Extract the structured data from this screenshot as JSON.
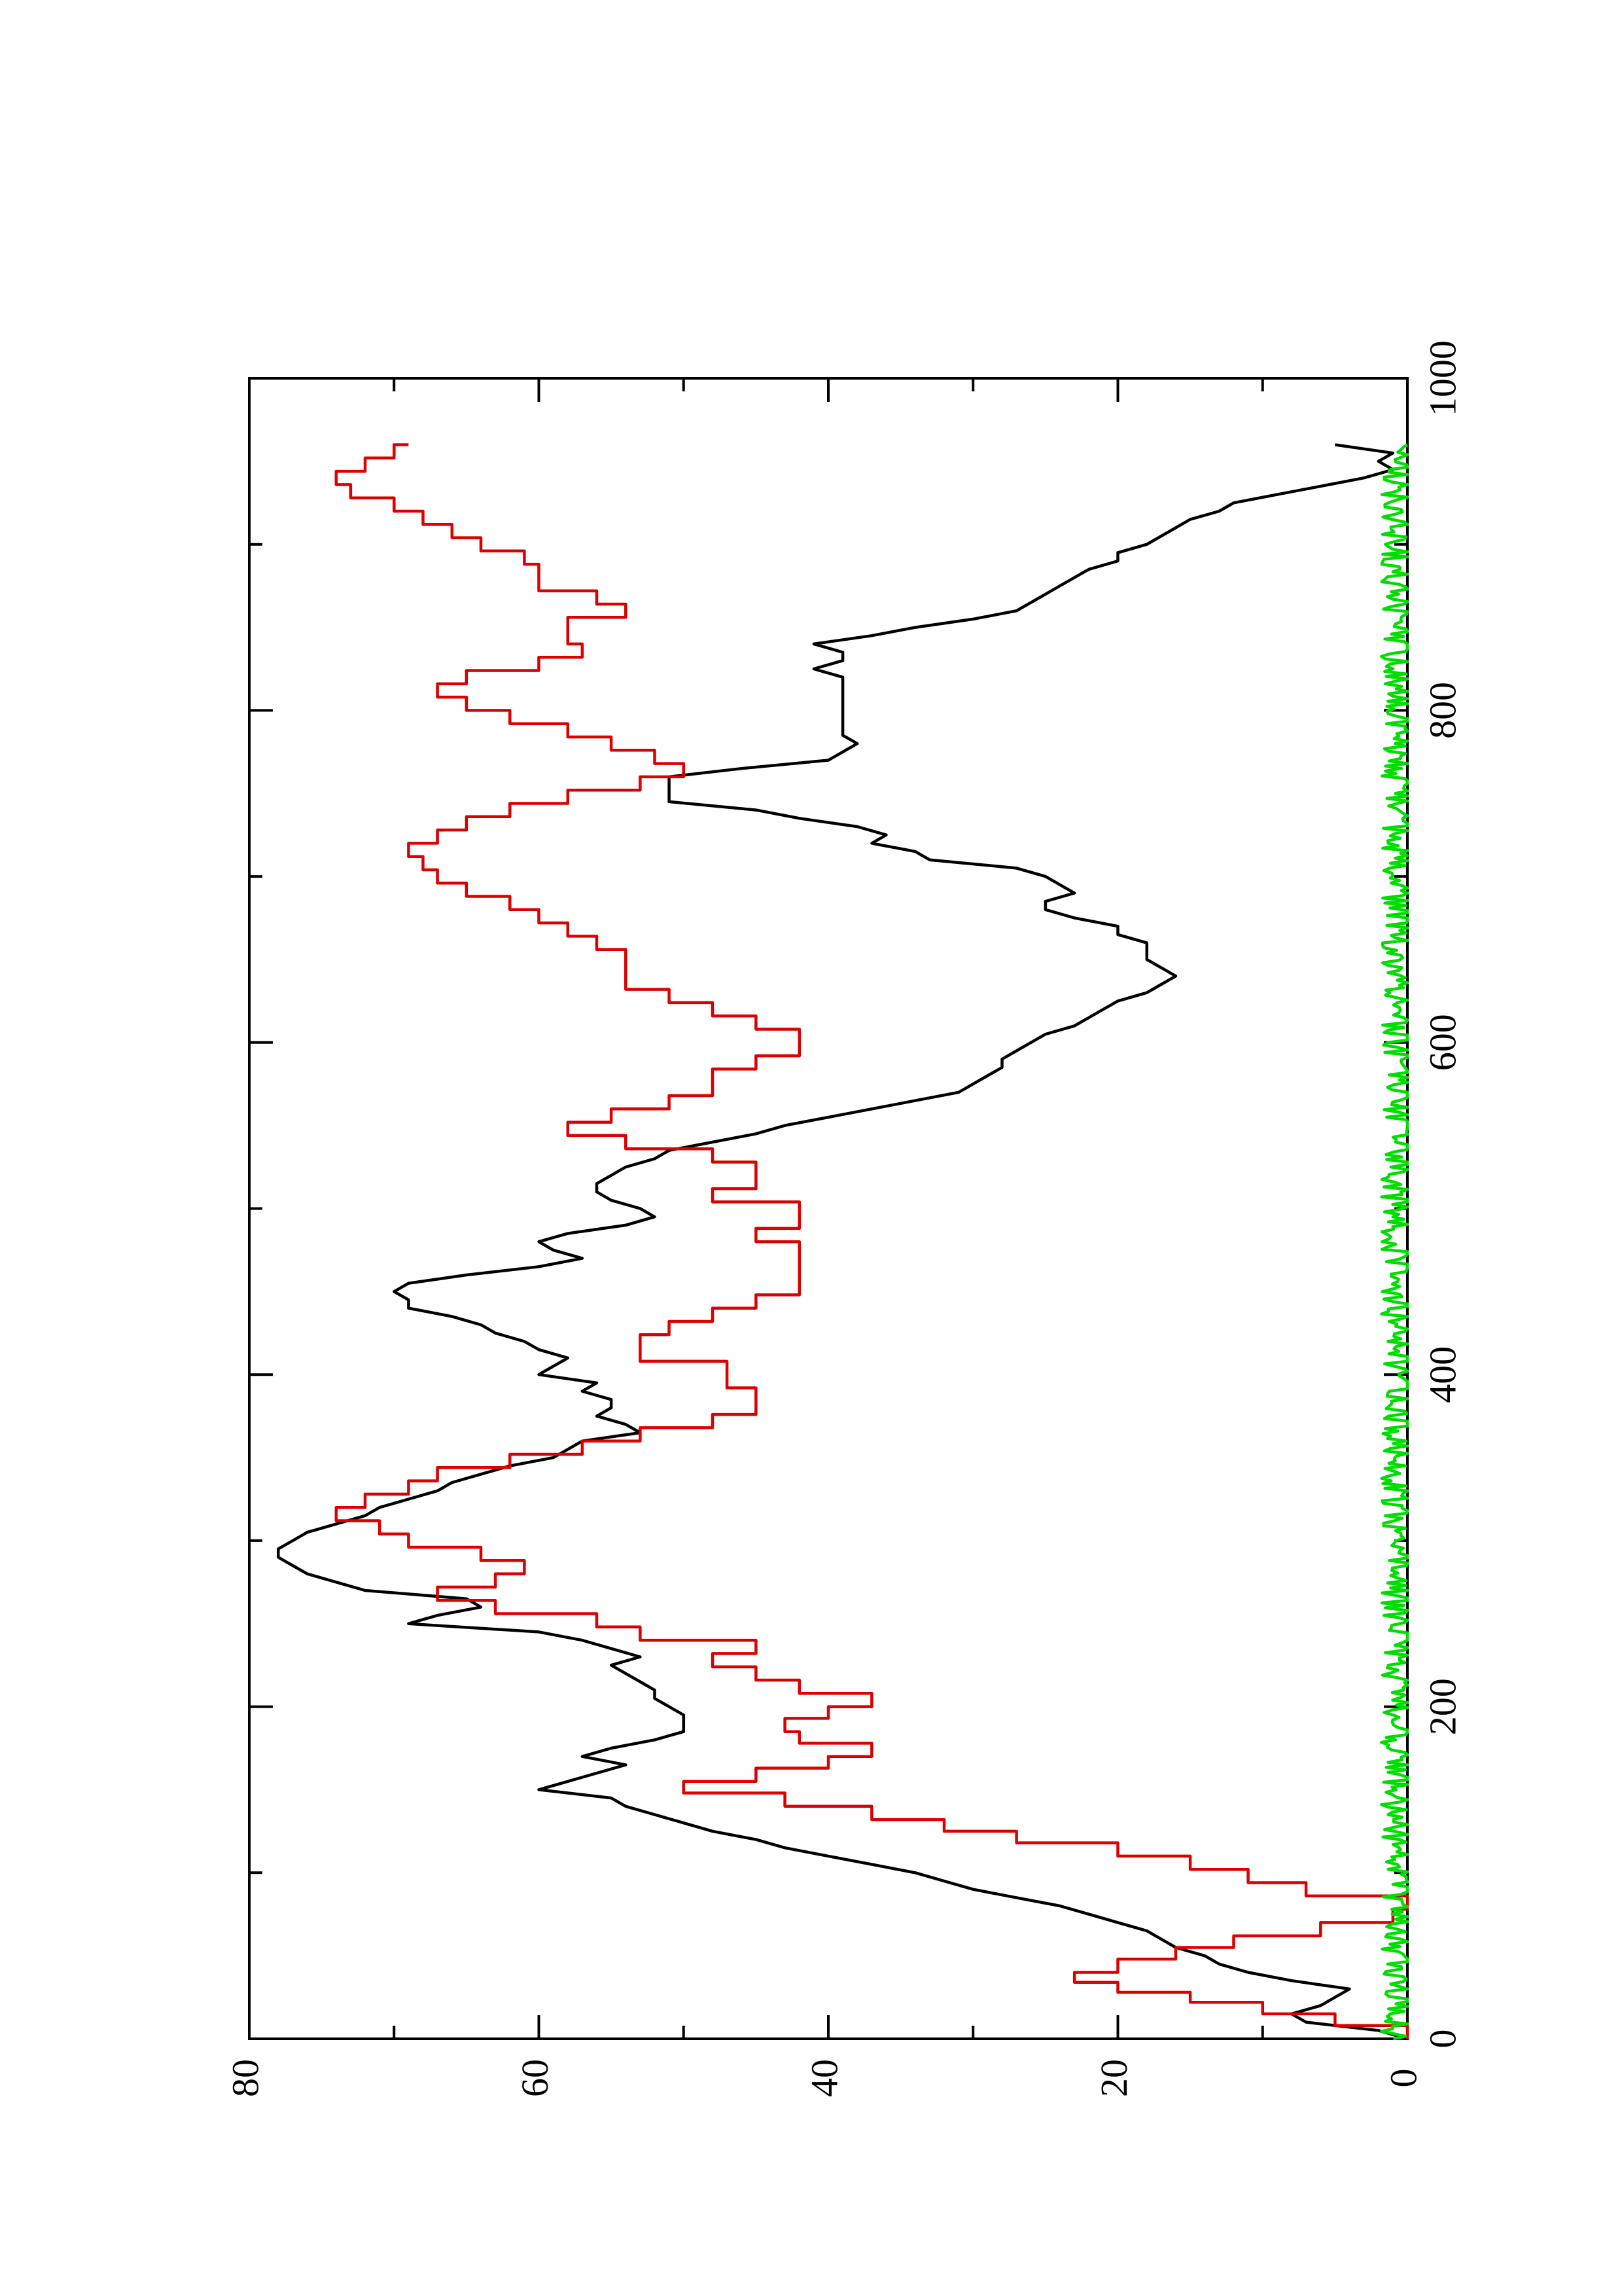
{
  "chart_data": {
    "type": "line",
    "orientation": "rotated-90-ccw",
    "title": "",
    "xlabel": "",
    "ylabel": "",
    "xlim": [
      0,
      1000
    ],
    "ylim": [
      0,
      80
    ],
    "grid": false,
    "legend": "none",
    "x_ticks": [
      0,
      200,
      400,
      600,
      800,
      1000
    ],
    "y_ticks": [
      0,
      20,
      40,
      60,
      80
    ],
    "series": [
      {
        "color": "#000000",
        "style": "line",
        "x": [
          0,
          5,
          10,
          15,
          20,
          25,
          30,
          35,
          40,
          45,
          50,
          55,
          60,
          65,
          70,
          75,
          80,
          85,
          90,
          95,
          100,
          105,
          110,
          115,
          120,
          125,
          130,
          135,
          140,
          145,
          150,
          155,
          160,
          165,
          170,
          175,
          180,
          185,
          190,
          195,
          200,
          205,
          210,
          215,
          220,
          225,
          230,
          235,
          240,
          245,
          250,
          255,
          260,
          265,
          270,
          275,
          280,
          285,
          290,
          295,
          300,
          305,
          310,
          315,
          320,
          325,
          330,
          335,
          340,
          345,
          350,
          355,
          360,
          365,
          370,
          375,
          380,
          385,
          390,
          395,
          400,
          405,
          410,
          415,
          420,
          425,
          430,
          435,
          440,
          445,
          450,
          455,
          460,
          465,
          470,
          475,
          480,
          485,
          490,
          495,
          500,
          505,
          510,
          515,
          520,
          525,
          530,
          535,
          540,
          545,
          550,
          555,
          560,
          565,
          570,
          575,
          580,
          585,
          590,
          595,
          600,
          605,
          610,
          615,
          620,
          625,
          630,
          635,
          640,
          645,
          650,
          655,
          660,
          665,
          670,
          675,
          680,
          685,
          690,
          695,
          700,
          705,
          710,
          715,
          720,
          725,
          730,
          735,
          740,
          745,
          750,
          755,
          760,
          765,
          770,
          775,
          780,
          785,
          790,
          795,
          800,
          805,
          810,
          815,
          820,
          825,
          830,
          835,
          840,
          845,
          850,
          855,
          860,
          865,
          870,
          875,
          880,
          885,
          890,
          895,
          900,
          905,
          910,
          915,
          920,
          925,
          930,
          935,
          940,
          945,
          950,
          955,
          960
        ],
        "y": [
          0,
          2,
          7,
          8,
          6,
          5,
          4,
          8,
          11,
          13,
          14,
          16,
          17,
          18,
          20,
          22,
          24,
          27,
          30,
          32,
          34,
          37,
          40,
          43,
          45,
          48,
          50,
          52,
          54,
          55,
          60,
          58,
          56,
          54,
          57,
          55,
          52,
          50,
          50,
          50,
          51,
          52,
          52,
          53,
          54,
          55,
          53,
          55,
          57,
          60,
          69,
          67,
          64,
          65,
          72,
          74,
          76,
          77,
          78,
          78,
          77,
          76,
          74,
          72,
          71,
          69,
          67,
          66,
          64,
          62,
          59,
          58,
          57,
          53,
          54,
          56,
          55,
          55,
          57,
          56,
          60,
          59,
          58,
          60,
          61,
          63,
          64,
          66,
          69,
          69,
          70,
          69,
          65,
          60,
          57,
          59,
          60,
          58,
          54,
          52,
          53,
          55,
          56,
          56,
          55,
          54,
          52,
          51,
          48,
          45,
          43,
          40,
          37,
          34,
          31,
          30,
          29,
          28,
          28,
          27,
          26,
          25,
          23,
          22,
          21,
          20,
          18,
          17,
          16,
          17,
          18,
          18,
          18,
          20,
          20,
          23,
          25,
          25,
          23,
          24,
          25,
          27,
          33,
          34,
          37,
          36,
          38,
          42,
          45,
          51,
          51,
          51,
          51,
          46,
          40,
          39,
          38,
          39,
          39,
          39,
          39,
          39,
          39,
          39,
          39,
          41,
          39,
          39,
          41,
          37,
          34,
          30,
          27,
          26,
          25,
          24,
          23,
          22,
          20,
          20,
          18,
          17,
          16,
          15,
          13,
          12,
          9,
          6,
          3,
          1,
          2,
          1,
          5
        ]
      },
      {
        "color": "#dd0000",
        "style": "step",
        "x": [
          0,
          8,
          15,
          22,
          28,
          34,
          40,
          48,
          55,
          62,
          70,
          78,
          86,
          94,
          102,
          110,
          118,
          125,
          132,
          140,
          148,
          155,
          163,
          170,
          178,
          185,
          193,
          200,
          208,
          216,
          224,
          232,
          240,
          248,
          256,
          264,
          272,
          280,
          288,
          296,
          304,
          312,
          320,
          328,
          336,
          344,
          352,
          360,
          368,
          376,
          384,
          392,
          400,
          408,
          416,
          424,
          432,
          440,
          448,
          456,
          464,
          472,
          480,
          488,
          496,
          504,
          512,
          520,
          528,
          536,
          544,
          552,
          560,
          568,
          576,
          584,
          592,
          600,
          608,
          616,
          624,
          632,
          640,
          648,
          656,
          664,
          672,
          680,
          688,
          696,
          704,
          712,
          720,
          728,
          736,
          744,
          752,
          760,
          768,
          776,
          784,
          792,
          800,
          808,
          816,
          824,
          832,
          840,
          848,
          856,
          864,
          872,
          880,
          888,
          896,
          904,
          912,
          920,
          928,
          936,
          944,
          952,
          960
        ],
        "y": [
          0,
          5,
          10,
          15,
          20,
          23,
          20,
          16,
          12,
          6,
          1,
          0,
          7,
          11,
          15,
          20,
          27,
          32,
          37,
          43,
          50,
          45,
          40,
          37,
          42,
          43,
          40,
          37,
          42,
          45,
          48,
          45,
          53,
          56,
          63,
          67,
          63,
          61,
          64,
          69,
          71,
          74,
          72,
          69,
          67,
          62,
          57,
          53,
          48,
          45,
          45,
          47,
          47,
          53,
          53,
          51,
          48,
          45,
          42,
          42,
          42,
          42,
          45,
          42,
          42,
          48,
          45,
          45,
          48,
          54,
          58,
          55,
          51,
          48,
          48,
          45,
          42,
          42,
          45,
          48,
          51,
          54,
          54,
          54,
          56,
          58,
          60,
          62,
          65,
          67,
          68,
          69,
          67,
          65,
          62,
          58,
          53,
          50,
          52,
          55,
          58,
          62,
          65,
          67,
          65,
          60,
          57,
          58,
          58,
          54,
          56,
          60,
          60,
          61,
          64,
          66,
          68,
          70,
          73,
          74,
          72,
          70,
          69
        ]
      },
      {
        "color": "#00dd00",
        "style": "noise",
        "x_range": [
          0,
          960
        ],
        "mean": 0.6,
        "amplitude": 1.2
      }
    ]
  },
  "ticks": {
    "x_labels": [
      "0",
      "200",
      "400",
      "600",
      "800",
      "1000"
    ],
    "y_labels": [
      "0",
      "20",
      "40",
      "60",
      "80"
    ]
  }
}
